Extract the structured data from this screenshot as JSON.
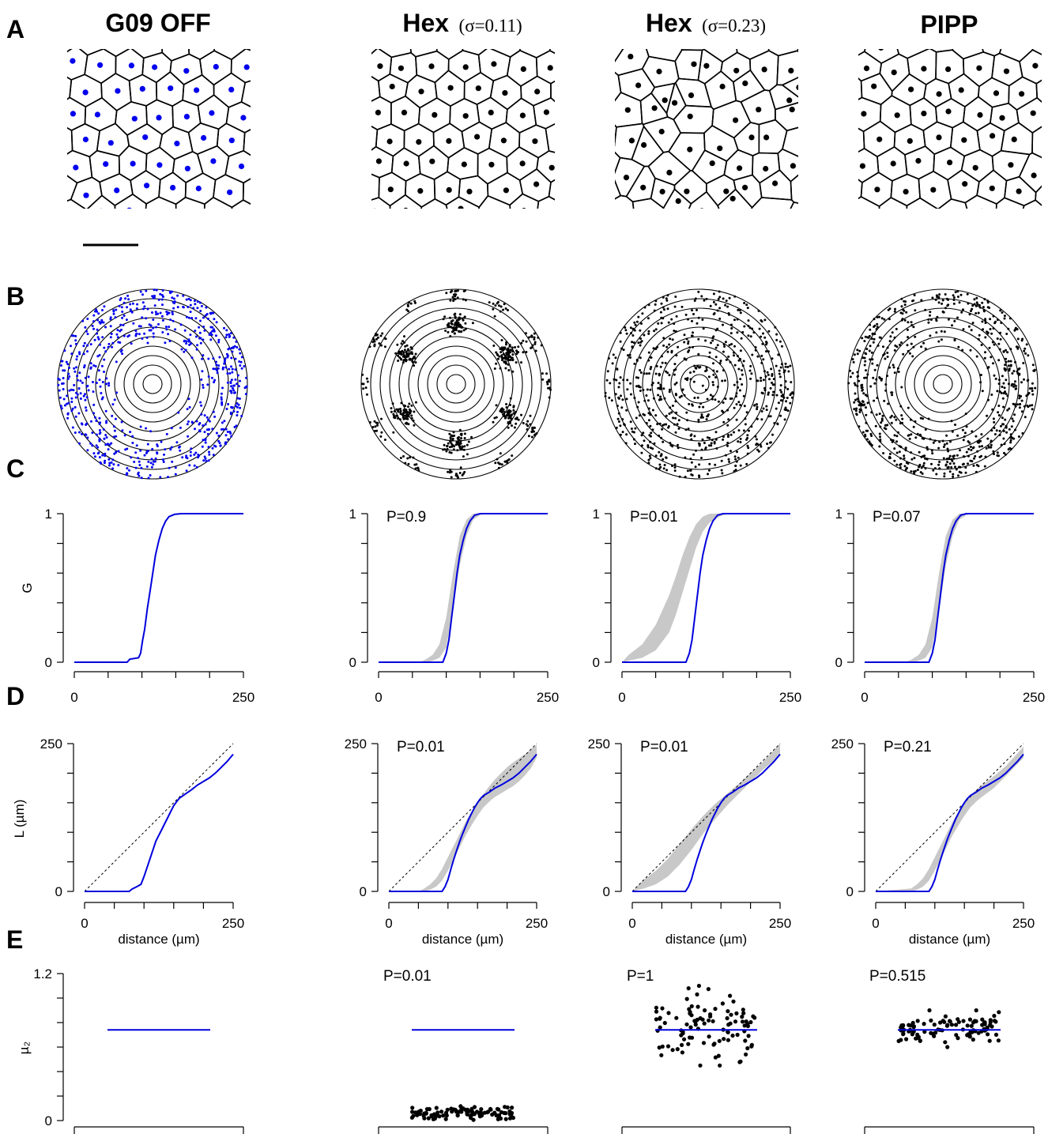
{
  "panel_letters": [
    "A",
    "B",
    "C",
    "D",
    "E"
  ],
  "columns": [
    {
      "title": "G09 OFF",
      "subtitle": "",
      "point_color": "#0000ee"
    },
    {
      "title": "Hex",
      "subtitle": "(σ=0.11)",
      "point_color": "#000000"
    },
    {
      "title": "Hex",
      "subtitle": "(σ=0.23)",
      "point_color": "#000000"
    },
    {
      "title": "PIPP",
      "subtitle": "",
      "point_color": "#000000"
    }
  ],
  "colors": {
    "data_line": "#0000dd",
    "envelope": "#c8c8c8",
    "axis": "#000000"
  },
  "chart_data": [
    {
      "type": "line",
      "panel": "C",
      "ylabel": "G",
      "xlabel": "",
      "xlim": [
        0,
        250
      ],
      "ylim": [
        0,
        1
      ],
      "x_tick_labels": [
        "0",
        "250"
      ],
      "y_tick_labels": [
        "0",
        "1"
      ],
      "grid": false,
      "p_values": [
        "",
        "P=0.9",
        "P=0.01",
        "P=0.07"
      ],
      "series": [
        {
          "x": [
            0,
            78,
            82,
            95,
            98,
            101,
            104,
            108,
            112,
            116,
            120,
            125,
            130,
            135,
            140,
            148,
            158,
            250
          ],
          "y": [
            0,
            0,
            0.02,
            0.03,
            0.06,
            0.15,
            0.22,
            0.36,
            0.48,
            0.6,
            0.72,
            0.82,
            0.9,
            0.95,
            0.98,
            0.995,
            1,
            1
          ]
        },
        {
          "x": [
            0,
            95,
            100,
            104,
            108,
            112,
            116,
            120,
            125,
            130,
            135,
            142,
            150,
            250
          ],
          "y": [
            0,
            0,
            0.06,
            0.15,
            0.3,
            0.45,
            0.6,
            0.72,
            0.82,
            0.9,
            0.95,
            0.99,
            1,
            1
          ]
        },
        {
          "x": [
            0,
            95,
            100,
            104,
            108,
            112,
            116,
            120,
            125,
            130,
            135,
            142,
            150,
            250
          ],
          "y": [
            0,
            0,
            0.06,
            0.15,
            0.3,
            0.45,
            0.6,
            0.72,
            0.82,
            0.9,
            0.95,
            0.99,
            1,
            1
          ]
        },
        {
          "x": [
            0,
            95,
            100,
            104,
            108,
            112,
            116,
            120,
            125,
            130,
            135,
            142,
            150,
            250
          ],
          "y": [
            0,
            0,
            0.06,
            0.15,
            0.3,
            0.45,
            0.6,
            0.72,
            0.82,
            0.9,
            0.95,
            0.99,
            1,
            1
          ]
        }
      ],
      "envelopes": [
        null,
        {
          "x": [
            0,
            60,
            70,
            80,
            90,
            100,
            110,
            120,
            130,
            140,
            150,
            160,
            250
          ],
          "lower": [
            0,
            0,
            0,
            0.01,
            0.03,
            0.1,
            0.35,
            0.65,
            0.85,
            0.96,
            0.99,
            1,
            1
          ],
          "upper": [
            0,
            0,
            0.02,
            0.05,
            0.12,
            0.3,
            0.6,
            0.85,
            0.96,
            1,
            1,
            1,
            1
          ]
        },
        {
          "x": [
            0,
            10,
            30,
            50,
            70,
            80,
            90,
            100,
            110,
            120,
            130,
            140,
            150,
            160,
            170,
            250
          ],
          "lower": [
            0,
            0.01,
            0.03,
            0.08,
            0.2,
            0.32,
            0.47,
            0.62,
            0.77,
            0.88,
            0.94,
            0.97,
            0.99,
            1,
            1,
            1
          ],
          "upper": [
            0,
            0.05,
            0.12,
            0.25,
            0.45,
            0.58,
            0.72,
            0.84,
            0.93,
            0.98,
            1,
            1,
            1,
            1,
            1,
            1
          ]
        },
        {
          "x": [
            0,
            60,
            70,
            80,
            90,
            100,
            110,
            120,
            130,
            140,
            150,
            160,
            250
          ],
          "lower": [
            0,
            0,
            0,
            0.01,
            0.03,
            0.1,
            0.35,
            0.65,
            0.85,
            0.96,
            0.99,
            1,
            1
          ],
          "upper": [
            0,
            0,
            0.02,
            0.05,
            0.12,
            0.3,
            0.6,
            0.85,
            0.96,
            1,
            1,
            1,
            1
          ]
        }
      ]
    },
    {
      "type": "line",
      "panel": "D",
      "ylabel": "L (µm)",
      "xlabel": "distance (µm)",
      "xlim": [
        0,
        250
      ],
      "ylim": [
        0,
        250
      ],
      "x_tick_labels": [
        "0",
        "250"
      ],
      "y_tick_labels": [
        "0",
        "250"
      ],
      "grid": false,
      "p_values": [
        "",
        "P=0.01",
        "P=0.01",
        "P=0.21"
      ],
      "reference_line": "y = x (dashed)",
      "series": [
        {
          "x": [
            0,
            75,
            80,
            88,
            95,
            100,
            105,
            110,
            115,
            120,
            125,
            130,
            135,
            140,
            145,
            150,
            155,
            160,
            170,
            180,
            190,
            200,
            210,
            220,
            230,
            240,
            250
          ],
          "y": [
            0,
            0,
            4,
            8,
            12,
            25,
            40,
            55,
            70,
            85,
            95,
            105,
            115,
            125,
            135,
            145,
            152,
            158,
            165,
            172,
            180,
            186,
            192,
            200,
            210,
            220,
            232
          ]
        },
        {
          "x": [
            0,
            90,
            95,
            100,
            105,
            110,
            115,
            120,
            125,
            130,
            135,
            140,
            145,
            150,
            155,
            160,
            170,
            180,
            190,
            200,
            210,
            220,
            230,
            240,
            250
          ],
          "y": [
            0,
            0,
            8,
            20,
            38,
            55,
            70,
            85,
            98,
            110,
            122,
            132,
            142,
            150,
            157,
            162,
            168,
            175,
            180,
            186,
            192,
            200,
            210,
            220,
            232
          ]
        },
        {
          "x": [
            0,
            90,
            95,
            100,
            105,
            110,
            115,
            120,
            125,
            130,
            135,
            140,
            145,
            150,
            155,
            160,
            170,
            180,
            190,
            200,
            210,
            220,
            230,
            240,
            250
          ],
          "y": [
            0,
            0,
            8,
            20,
            38,
            55,
            70,
            85,
            98,
            110,
            122,
            132,
            142,
            150,
            157,
            162,
            168,
            175,
            180,
            186,
            192,
            200,
            210,
            220,
            232
          ]
        },
        {
          "x": [
            0,
            90,
            95,
            100,
            105,
            110,
            115,
            120,
            125,
            130,
            135,
            140,
            145,
            150,
            155,
            160,
            170,
            180,
            190,
            200,
            210,
            220,
            230,
            240,
            250
          ],
          "y": [
            0,
            0,
            8,
            20,
            38,
            55,
            70,
            85,
            98,
            110,
            122,
            132,
            142,
            150,
            157,
            162,
            168,
            175,
            180,
            186,
            192,
            200,
            210,
            220,
            232
          ]
        }
      ],
      "envelopes": [
        null,
        {
          "x": [
            0,
            50,
            60,
            70,
            80,
            90,
            100,
            110,
            120,
            130,
            140,
            150,
            160,
            170,
            180,
            190,
            200,
            210,
            220,
            230,
            240,
            250
          ],
          "lower": [
            0,
            0,
            0,
            3,
            8,
            18,
            35,
            55,
            75,
            95,
            112,
            128,
            142,
            152,
            160,
            166,
            172,
            178,
            186,
            196,
            208,
            226
          ],
          "upper": [
            0,
            0,
            5,
            12,
            22,
            38,
            58,
            78,
            98,
            118,
            135,
            150,
            165,
            178,
            190,
            200,
            210,
            218,
            225,
            232,
            240,
            248
          ]
        },
        {
          "x": [
            0,
            20,
            40,
            60,
            80,
            100,
            120,
            140,
            160,
            180,
            200,
            220,
            250
          ],
          "lower": [
            0,
            5,
            12,
            25,
            45,
            70,
            98,
            122,
            145,
            165,
            185,
            205,
            230
          ],
          "upper": [
            0,
            20,
            35,
            55,
            80,
            105,
            128,
            148,
            165,
            182,
            200,
            218,
            250
          ]
        },
        {
          "x": [
            0,
            60,
            70,
            80,
            90,
            100,
            110,
            120,
            130,
            140,
            150,
            160,
            170,
            180,
            200,
            220,
            250
          ],
          "lower": [
            0,
            0,
            3,
            8,
            18,
            35,
            55,
            75,
            95,
            112,
            128,
            142,
            152,
            160,
            175,
            195,
            226
          ],
          "upper": [
            0,
            5,
            12,
            22,
            38,
            58,
            78,
            98,
            118,
            135,
            150,
            163,
            172,
            180,
            195,
            212,
            245
          ]
        }
      ]
    },
    {
      "type": "scatter",
      "panel": "E",
      "ylabel": "µ₂",
      "ylim": [
        0,
        1.2
      ],
      "y_tick_labels": [
        "0",
        "1.2"
      ],
      "grid": false,
      "p_values": [
        "",
        "P=0.01",
        "P=1",
        "P=0.515"
      ],
      "observed_value": 0.74,
      "simulated_ranges": [
        null,
        [
          0.0,
          0.12
        ],
        [
          0.45,
          1.1
        ],
        [
          0.6,
          0.9
        ]
      ]
    }
  ],
  "scale_bar": "scale bar"
}
